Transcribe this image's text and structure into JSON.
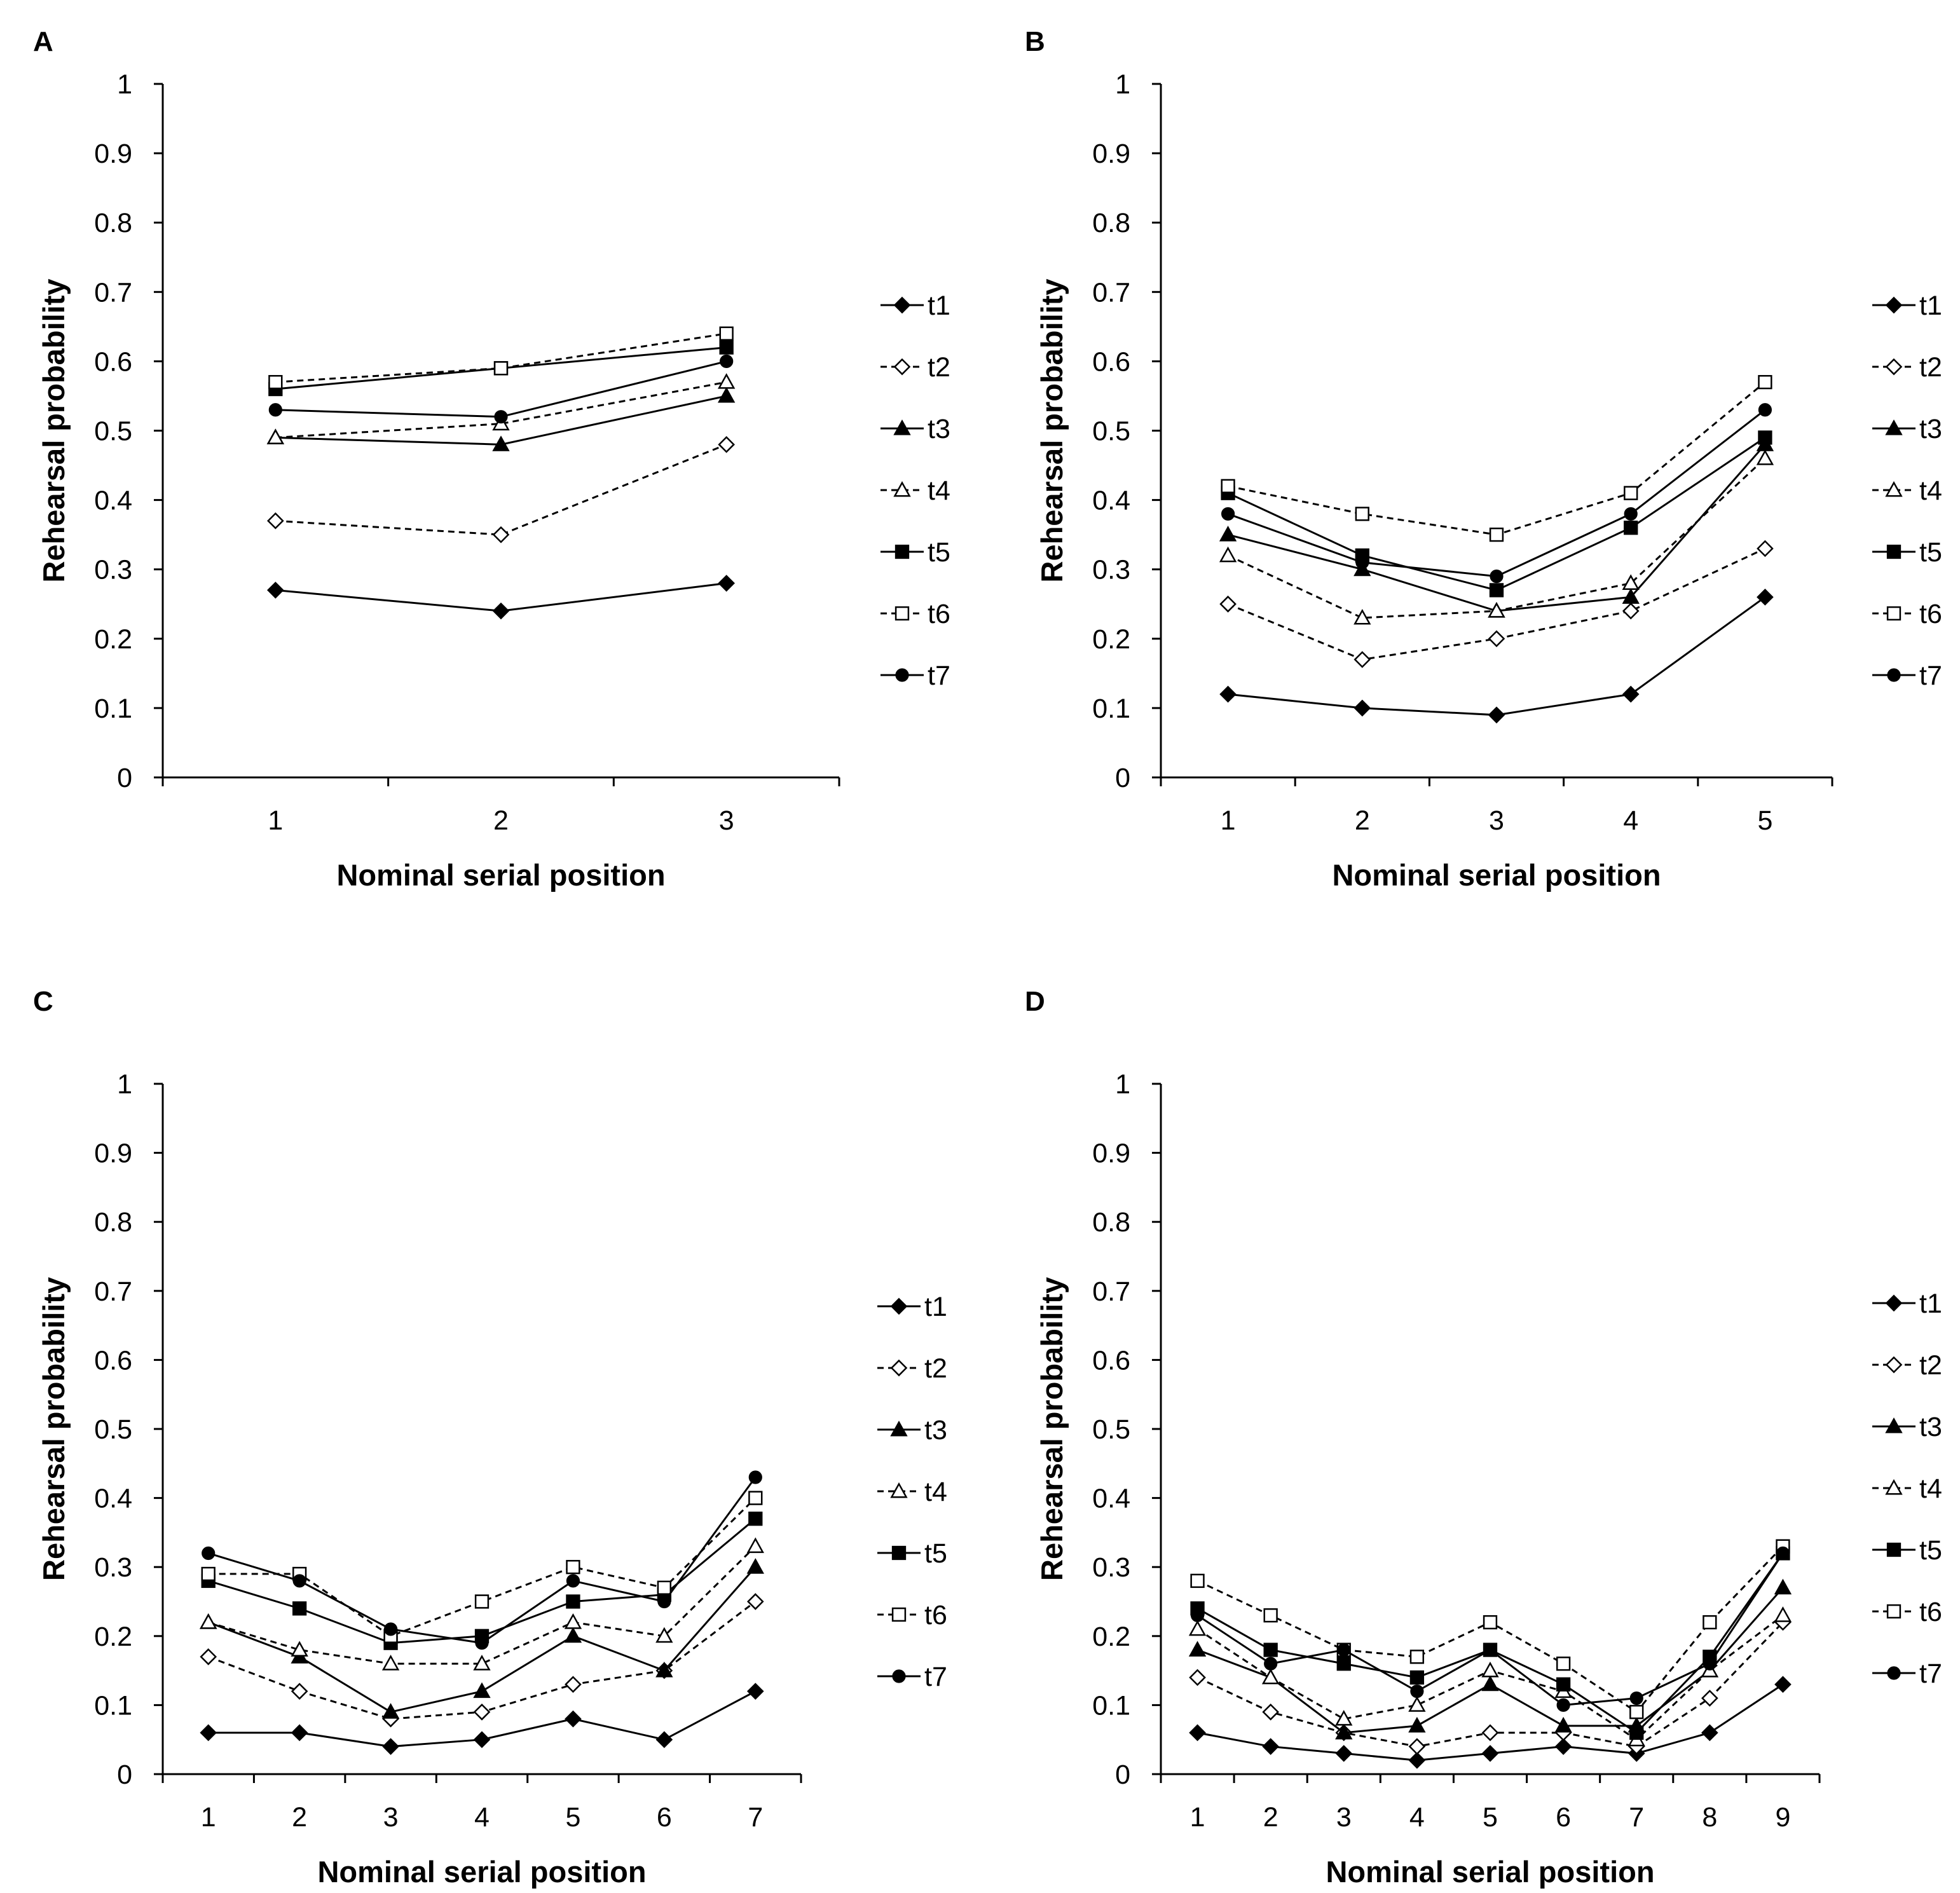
{
  "figure": {
    "legend_series": [
      "t1",
      "t2",
      "t3",
      "t4",
      "t5",
      "t6",
      "t7"
    ],
    "series_styles": [
      {
        "name": "t1",
        "marker": "diamond",
        "filled": true,
        "dashed": false
      },
      {
        "name": "t2",
        "marker": "diamond",
        "filled": false,
        "dashed": true
      },
      {
        "name": "t3",
        "marker": "triangle",
        "filled": true,
        "dashed": false
      },
      {
        "name": "t4",
        "marker": "triangle",
        "filled": false,
        "dashed": true
      },
      {
        "name": "t5",
        "marker": "square",
        "filled": true,
        "dashed": false
      },
      {
        "name": "t6",
        "marker": "square",
        "filled": false,
        "dashed": true
      },
      {
        "name": "t7",
        "marker": "circle",
        "filled": true,
        "dashed": false
      }
    ],
    "colors": {
      "line": "#000000",
      "open_fill": "#ffffff"
    }
  },
  "chart_data": [
    {
      "panel": "A",
      "type": "line",
      "title": "",
      "xlabel": "Nominal serial position",
      "ylabel": "Rehearsal probability",
      "ylim": [
        0,
        1
      ],
      "yticks": [
        "0",
        "0.1",
        "0.2",
        "0.3",
        "0.4",
        "0.5",
        "0.6",
        "0.7",
        "0.8",
        "0.9",
        "1"
      ],
      "categories": [
        "1",
        "2",
        "3"
      ],
      "legend": "right",
      "series": [
        {
          "name": "t1",
          "values": [
            0.27,
            0.24,
            0.28
          ]
        },
        {
          "name": "t2",
          "values": [
            0.37,
            0.35,
            0.48
          ]
        },
        {
          "name": "t3",
          "values": [
            0.49,
            0.48,
            0.55
          ]
        },
        {
          "name": "t4",
          "values": [
            0.49,
            0.51,
            0.57
          ]
        },
        {
          "name": "t5",
          "values": [
            0.56,
            0.59,
            0.62
          ]
        },
        {
          "name": "t6",
          "values": [
            0.57,
            0.59,
            0.64
          ]
        },
        {
          "name": "t7",
          "values": [
            0.53,
            0.52,
            0.6
          ]
        }
      ]
    },
    {
      "panel": "B",
      "type": "line",
      "title": "",
      "xlabel": "Nominal serial position",
      "ylabel": "Rehearsal probability",
      "ylim": [
        0,
        1
      ],
      "yticks": [
        "0",
        "0.1",
        "0.2",
        "0.3",
        "0.4",
        "0.5",
        "0.6",
        "0.7",
        "0.8",
        "0.9",
        "1"
      ],
      "categories": [
        "1",
        "2",
        "3",
        "4",
        "5"
      ],
      "legend": "right",
      "series": [
        {
          "name": "t1",
          "values": [
            0.12,
            0.1,
            0.09,
            0.12,
            0.26
          ]
        },
        {
          "name": "t2",
          "values": [
            0.25,
            0.17,
            0.2,
            0.24,
            0.33
          ]
        },
        {
          "name": "t3",
          "values": [
            0.35,
            0.3,
            0.24,
            0.26,
            0.48
          ]
        },
        {
          "name": "t4",
          "values": [
            0.32,
            0.23,
            0.24,
            0.28,
            0.46
          ]
        },
        {
          "name": "t5",
          "values": [
            0.41,
            0.32,
            0.27,
            0.36,
            0.49
          ]
        },
        {
          "name": "t6",
          "values": [
            0.42,
            0.38,
            0.35,
            0.41,
            0.57
          ]
        },
        {
          "name": "t7",
          "values": [
            0.38,
            0.31,
            0.29,
            0.38,
            0.53
          ]
        }
      ]
    },
    {
      "panel": "C",
      "type": "line",
      "title": "",
      "xlabel": "Nominal serial position",
      "ylabel": "Rehearsal probability",
      "ylim": [
        0,
        1
      ],
      "yticks": [
        "0",
        "0.1",
        "0.2",
        "0.3",
        "0.4",
        "0.5",
        "0.6",
        "0.7",
        "0.8",
        "0.9",
        "1"
      ],
      "categories": [
        "1",
        "2",
        "3",
        "4",
        "5",
        "6",
        "7"
      ],
      "legend": "right",
      "series": [
        {
          "name": "t1",
          "values": [
            0.06,
            0.06,
            0.04,
            0.05,
            0.08,
            0.05,
            0.12
          ]
        },
        {
          "name": "t2",
          "values": [
            0.17,
            0.12,
            0.08,
            0.09,
            0.13,
            0.15,
            0.25
          ]
        },
        {
          "name": "t3",
          "values": [
            0.22,
            0.17,
            0.09,
            0.12,
            0.2,
            0.15,
            0.3
          ]
        },
        {
          "name": "t4",
          "values": [
            0.22,
            0.18,
            0.16,
            0.16,
            0.22,
            0.2,
            0.33
          ]
        },
        {
          "name": "t5",
          "values": [
            0.28,
            0.24,
            0.19,
            0.2,
            0.25,
            0.26,
            0.37
          ]
        },
        {
          "name": "t6",
          "values": [
            0.29,
            0.29,
            0.2,
            0.25,
            0.3,
            0.27,
            0.4
          ]
        },
        {
          "name": "t7",
          "values": [
            0.32,
            0.28,
            0.21,
            0.19,
            0.28,
            0.25,
            0.43
          ]
        }
      ]
    },
    {
      "panel": "D",
      "type": "line",
      "title": "",
      "xlabel": "Nominal serial position",
      "ylabel": "Rehearsal probability",
      "ylim": [
        0,
        1
      ],
      "yticks": [
        "0",
        "0.1",
        "0.2",
        "0.3",
        "0.4",
        "0.5",
        "0.6",
        "0.7",
        "0.8",
        "0.9",
        "1"
      ],
      "categories": [
        "1",
        "2",
        "3",
        "4",
        "5",
        "6",
        "7",
        "8",
        "9"
      ],
      "legend": "right",
      "series": [
        {
          "name": "t1",
          "values": [
            0.06,
            0.04,
            0.03,
            0.02,
            0.03,
            0.04,
            0.03,
            0.06,
            0.13
          ]
        },
        {
          "name": "t2",
          "values": [
            0.14,
            0.09,
            0.06,
            0.04,
            0.06,
            0.06,
            0.04,
            0.11,
            0.22
          ]
        },
        {
          "name": "t3",
          "values": [
            0.18,
            0.14,
            0.06,
            0.07,
            0.13,
            0.07,
            0.07,
            0.15,
            0.27
          ]
        },
        {
          "name": "t4",
          "values": [
            0.21,
            0.14,
            0.08,
            0.1,
            0.15,
            0.12,
            0.05,
            0.15,
            0.23
          ]
        },
        {
          "name": "t5",
          "values": [
            0.24,
            0.18,
            0.16,
            0.14,
            0.18,
            0.13,
            0.06,
            0.17,
            0.32
          ]
        },
        {
          "name": "t6",
          "values": [
            0.28,
            0.23,
            0.18,
            0.17,
            0.22,
            0.16,
            0.09,
            0.22,
            0.33
          ]
        },
        {
          "name": "t7",
          "values": [
            0.23,
            0.16,
            0.18,
            0.12,
            0.18,
            0.1,
            0.11,
            0.16,
            0.32
          ]
        }
      ]
    }
  ]
}
